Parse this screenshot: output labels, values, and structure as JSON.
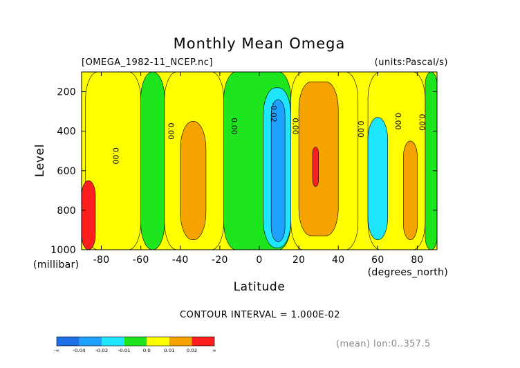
{
  "title": "Monthly Mean Omega",
  "file_label": "[OMEGA_1982-11_NCEP.nc]",
  "units_label": "(units:Pascal/s)",
  "contour_interval_label": "CONTOUR INTERVAL = 1.000E-02",
  "footer_note": "(mean) lon:0..357.5",
  "colors": {
    "blue": "#1e6fe6",
    "light_blue": "#1ea0ff",
    "cyan": "#1ee6ff",
    "green": "#1ee61e",
    "yellow": "#ffff00",
    "orange": "#f5a300",
    "red": "#ff1e1e"
  },
  "chart_data": {
    "type": "heatmap",
    "title": "Monthly Mean Omega",
    "xlabel": "Latitude",
    "ylabel": "Level",
    "x_unit_label": "(degrees_north)",
    "y_unit_label": "(millibar)",
    "xlim": [
      -90,
      90
    ],
    "ylim": [
      1000,
      100
    ],
    "x_ticks": [
      -80,
      -60,
      -40,
      -20,
      0,
      20,
      40,
      60,
      80
    ],
    "x_tick_labels": [
      "-80",
      "-60",
      "-40",
      "-20",
      "0",
      "20",
      "40",
      "60",
      "80"
    ],
    "y_ticks": [
      200,
      400,
      600,
      800,
      1000
    ],
    "y_tick_labels": [
      "200",
      "400",
      "600",
      "800",
      "1000"
    ],
    "contour_interval": 0.01,
    "contour_labels": [
      {
        "text": "0.00",
        "lat": -74,
        "level": 525
      },
      {
        "text": "0.00",
        "lat": -46,
        "level": 400
      },
      {
        "text": "0.00",
        "lat": -14,
        "level": 375
      },
      {
        "text": "-0.02",
        "lat": 6,
        "level": 305
      },
      {
        "text": "0.00",
        "lat": 17,
        "level": 375
      },
      {
        "text": "0.00",
        "lat": 50,
        "level": 390
      },
      {
        "text": "0.00",
        "lat": 69,
        "level": 350
      },
      {
        "text": "0.00",
        "lat": 81,
        "level": 355
      }
    ],
    "regions": [
      {
        "bin": "green",
        "lat_range": [
          -60,
          -48
        ],
        "level_range": [
          100,
          1000
        ]
      },
      {
        "bin": "green",
        "lat_range": [
          -18,
          16
        ],
        "level_range": [
          100,
          1000
        ]
      },
      {
        "bin": "green",
        "lat_range": [
          84,
          90
        ],
        "level_range": [
          100,
          1000
        ]
      },
      {
        "bin": "yellow",
        "lat_range": [
          -88,
          -60
        ],
        "level_range": [
          100,
          1000
        ]
      },
      {
        "bin": "yellow",
        "lat_range": [
          -48,
          -18
        ],
        "level_range": [
          100,
          1000
        ]
      },
      {
        "bin": "yellow",
        "lat_range": [
          16,
          50
        ],
        "level_range": [
          100,
          1000
        ]
      },
      {
        "bin": "yellow",
        "lat_range": [
          55,
          84
        ],
        "level_range": [
          100,
          1000
        ]
      },
      {
        "bin": "orange",
        "lat_range": [
          -40,
          -27
        ],
        "level_range": [
          350,
          950
        ]
      },
      {
        "bin": "orange",
        "lat_range": [
          20,
          40
        ],
        "level_range": [
          150,
          930
        ]
      },
      {
        "bin": "orange",
        "lat_range": [
          73,
          80
        ],
        "level_range": [
          450,
          950
        ]
      },
      {
        "bin": "cyan",
        "lat_range": [
          2,
          16
        ],
        "level_range": [
          180,
          990
        ]
      },
      {
        "bin": "cyan",
        "lat_range": [
          55,
          65
        ],
        "level_range": [
          330,
          950
        ]
      },
      {
        "bin": "light_blue",
        "lat_range": [
          6,
          13
        ],
        "level_range": [
          240,
          960
        ]
      },
      {
        "bin": "red",
        "lat_range": [
          -90,
          -83
        ],
        "level_range": [
          650,
          1000
        ]
      },
      {
        "bin": "red",
        "lat_range": [
          27,
          30
        ],
        "level_range": [
          480,
          680
        ]
      }
    ],
    "colorbar": {
      "bins": [
        "blue",
        "light_blue",
        "cyan",
        "green",
        "yellow",
        "orange",
        "red"
      ],
      "labels": [
        "-∞",
        "-0.04",
        "-0.02",
        "-0.01",
        "0.0",
        "0.01",
        "0.02",
        "∞"
      ]
    }
  }
}
